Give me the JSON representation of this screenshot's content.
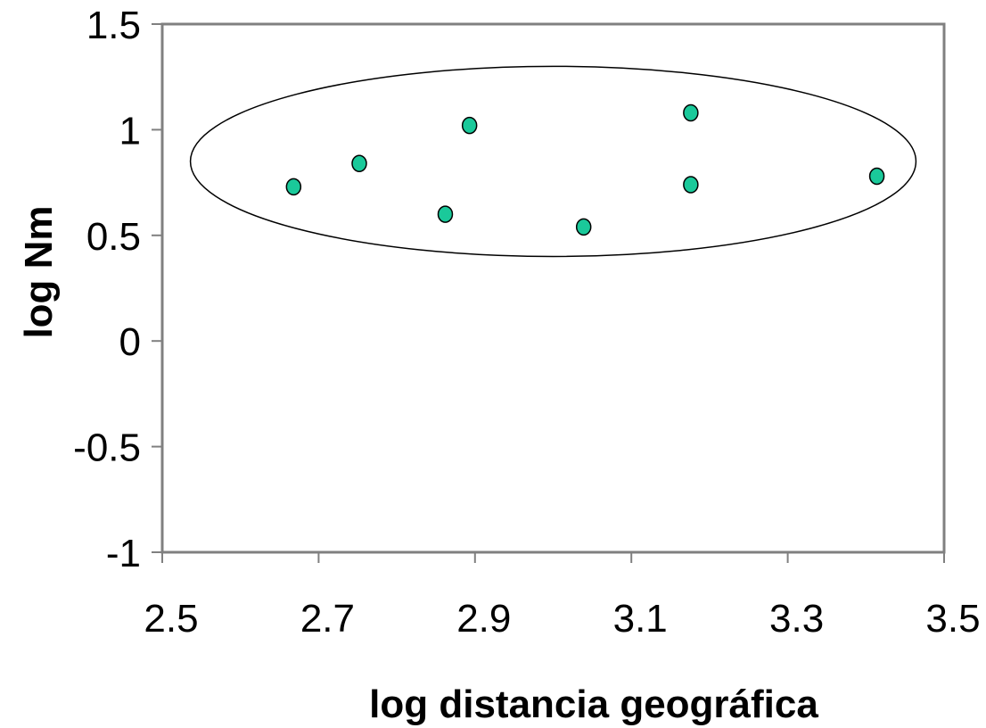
{
  "chart_data": {
    "type": "scatter",
    "title": "",
    "xlabel": "log distancia geográfica",
    "ylabel": "log Nm",
    "xlim": [
      2.5,
      3.5
    ],
    "ylim": [
      -1,
      1.5
    ],
    "xticks": [
      2.5,
      2.7,
      2.9,
      3.1,
      3.3,
      3.5
    ],
    "xtick_labels": [
      "2.5",
      "2.7",
      "2.9",
      "3.1",
      "3.3",
      "3.5"
    ],
    "yticks": [
      -1,
      -0.5,
      0,
      0.5,
      1,
      1.5
    ],
    "ytick_labels": [
      "-1",
      "-0.5",
      "0",
      "0.5",
      "1",
      "1.5"
    ],
    "grid": false,
    "legend": "none",
    "series": [
      {
        "color": "#1ac99a",
        "points": [
          {
            "x": 2.668,
            "y": 0.73
          },
          {
            "x": 2.752,
            "y": 0.84
          },
          {
            "x": 2.862,
            "y": 0.6
          },
          {
            "x": 2.893,
            "y": 1.02
          },
          {
            "x": 3.039,
            "y": 0.54
          },
          {
            "x": 3.176,
            "y": 1.08
          },
          {
            "x": 3.176,
            "y": 0.74
          },
          {
            "x": 3.414,
            "y": 0.78
          }
        ]
      }
    ],
    "annotation_ellipse": {
      "center": {
        "x": 3.0,
        "y": 0.85
      },
      "radius_x": 0.464,
      "radius_y": 0.45
    },
    "colors": {
      "plot_border": "#808080",
      "marker_fill": "#1ac99a",
      "marker_stroke": "#000000"
    }
  }
}
